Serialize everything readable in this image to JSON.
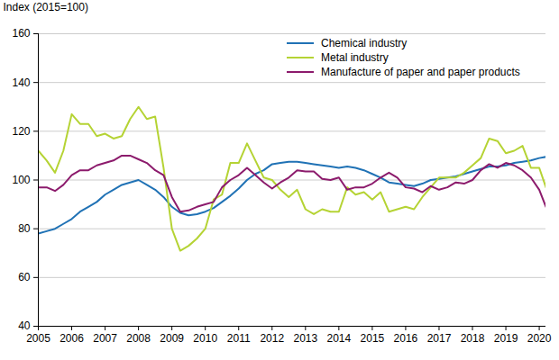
{
  "chart_data": {
    "type": "line",
    "title": "",
    "y_label": "Index (2015=100)",
    "x": [
      2005,
      2005.25,
      2005.5,
      2005.75,
      2006,
      2006.25,
      2006.5,
      2006.75,
      2007,
      2007.25,
      2007.5,
      2007.75,
      2008,
      2008.25,
      2008.5,
      2008.75,
      2009,
      2009.25,
      2009.5,
      2009.75,
      2010,
      2010.25,
      2010.5,
      2010.75,
      2011,
      2011.25,
      2011.5,
      2011.75,
      2012,
      2012.25,
      2012.5,
      2012.75,
      2013,
      2013.25,
      2013.5,
      2013.75,
      2014,
      2014.25,
      2014.5,
      2014.75,
      2015,
      2015.25,
      2015.5,
      2015.75,
      2016,
      2016.25,
      2016.5,
      2016.75,
      2017,
      2017.25,
      2017.5,
      2017.75,
      2018,
      2018.25,
      2018.5,
      2018.75,
      2019,
      2019.25,
      2019.5,
      2019.75,
      2020,
      2020.2
    ],
    "series": [
      {
        "name": "Chemical industry",
        "color": "#2072b5",
        "values": [
          78,
          79,
          80,
          82,
          84,
          87,
          89,
          91,
          94,
          96,
          98,
          99,
          100,
          98,
          96,
          93,
          89,
          86.5,
          85.5,
          86,
          87,
          88.5,
          91,
          93.5,
          96.5,
          100,
          102.5,
          104,
          106.5,
          107,
          107.5,
          107.5,
          107,
          106.5,
          106,
          105.5,
          105,
          105.5,
          105,
          104,
          102.5,
          101,
          99,
          98.5,
          98,
          97.5,
          98.5,
          100,
          100.5,
          101,
          101.5,
          102.5,
          103.5,
          104.5,
          105.5,
          105.5,
          106,
          107,
          107.5,
          108,
          109,
          109.5
        ]
      },
      {
        "name": "Metal industry",
        "color": "#b5d334",
        "values": [
          112,
          108,
          103,
          112,
          127,
          123,
          123,
          118,
          119,
          117,
          118,
          125,
          130,
          125,
          126,
          105,
          80,
          71,
          73,
          76,
          80,
          92,
          94,
          107,
          107,
          115,
          108,
          101,
          100,
          96,
          93,
          96,
          88,
          86,
          88,
          87,
          87,
          97,
          94,
          95,
          92,
          95,
          87,
          88,
          89,
          88,
          93,
          97,
          101,
          101,
          101,
          103,
          106,
          109,
          117,
          116,
          111,
          112,
          114,
          105,
          105,
          97
        ]
      },
      {
        "name": "Manufacture of paper and paper products",
        "color": "#8c1b6c",
        "values": [
          97,
          97,
          95.5,
          98,
          102,
          104,
          104,
          106,
          107,
          108,
          110,
          110,
          108.5,
          107,
          104,
          102,
          93,
          87,
          87.5,
          89,
          90,
          91,
          97,
          100,
          102,
          105,
          102,
          99,
          96.5,
          99,
          101,
          104,
          103.5,
          103.5,
          100.5,
          100,
          101,
          96,
          97,
          97,
          98.5,
          101,
          103,
          101,
          97,
          96.5,
          95,
          97.5,
          96,
          97,
          99,
          98.5,
          100,
          104,
          106.5,
          105,
          107,
          106,
          104,
          101,
          96,
          89
        ]
      }
    ],
    "xlim": [
      2005,
      2020.2
    ],
    "xticks": [
      2005,
      2006,
      2007,
      2008,
      2009,
      2010,
      2011,
      2012,
      2013,
      2014,
      2015,
      2016,
      2017,
      2018,
      2019,
      2020
    ],
    "ylim": [
      40,
      160
    ],
    "yticks": [
      40,
      60,
      80,
      100,
      120,
      140,
      160
    ],
    "grid": true,
    "legend": "top-right"
  }
}
